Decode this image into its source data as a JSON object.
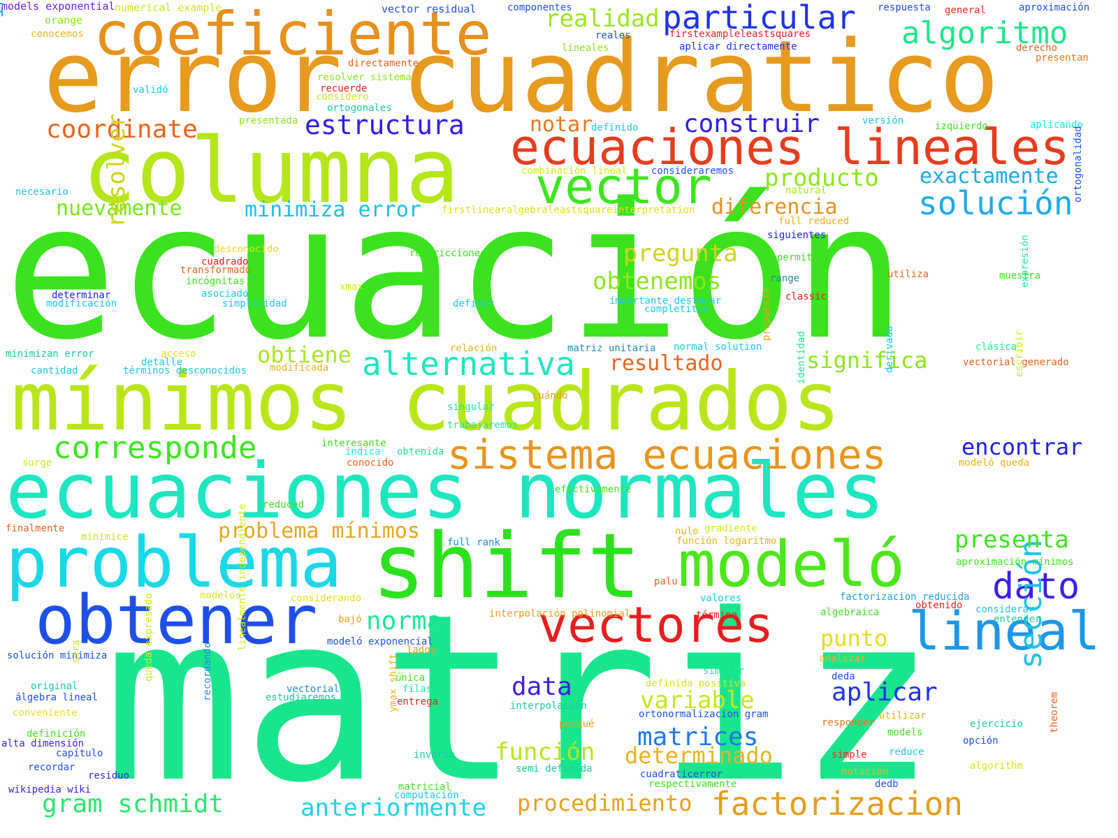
{
  "words": [
    {
      "text": "ecuación",
      "color": "#3ae31e"
    },
    {
      "text": "matriz",
      "color": "#19e68c"
    },
    {
      "text": "error cuadratico",
      "color": "#e69a1e"
    },
    {
      "text": "mínimos cuadrados",
      "color": "#b9e61a"
    },
    {
      "text": "ecuaciones normales",
      "color": "#1ee6c1"
    },
    {
      "text": "columna",
      "color": "#b4e61b"
    },
    {
      "text": "shift",
      "color": "#2de11e"
    },
    {
      "text": "coeficiente",
      "color": "#e6901e"
    },
    {
      "text": "problema",
      "color": "#1ad8e6"
    },
    {
      "text": "obtener",
      "color": "#1e50e6"
    },
    {
      "text": "modeló",
      "color": "#4de61a"
    },
    {
      "text": "ecuaciones lineales",
      "color": "#e63c1e"
    },
    {
      "text": "vector",
      "color": "#3ce61e"
    },
    {
      "text": "vectores",
      "color": "#e61e1e"
    },
    {
      "text": "sistema ecuaciones",
      "color": "#e6951e"
    },
    {
      "text": "lineal",
      "color": "#1e96e6"
    },
    {
      "text": "particular",
      "color": "#1e32e6"
    },
    {
      "text": "algoritmo",
      "color": "#1ee68a"
    },
    {
      "text": "alternativa",
      "color": "#1ee6c0"
    },
    {
      "text": "solución",
      "color": "#1eaae6"
    },
    {
      "text": "corresponde",
      "color": "#3ce61e"
    },
    {
      "text": "factorizacion",
      "color": "#e69c1e"
    },
    {
      "text": "dato",
      "color": "#3c1ee6"
    },
    {
      "text": "sección",
      "color": "#1ec2e6"
    },
    {
      "text": "estructura",
      "color": "#2d1ee6"
    },
    {
      "text": "construir",
      "color": "#2d1ee6"
    },
    {
      "text": "realidad",
      "color": "#9be61e"
    },
    {
      "text": "producto",
      "color": "#8ce61e"
    },
    {
      "text": "exactamente",
      "color": "#1ea8e6"
    },
    {
      "text": "coordinate",
      "color": "#e6641e"
    },
    {
      "text": "notar",
      "color": "#e6781e"
    },
    {
      "text": "nuevamente",
      "color": "#78e61e"
    },
    {
      "text": "minimiza error",
      "color": "#1ec0e6"
    },
    {
      "text": "diferencia",
      "color": "#e6901e"
    },
    {
      "text": "pregunta",
      "color": "#d2d21e"
    },
    {
      "text": "obtenemos",
      "color": "#8ce61e"
    },
    {
      "text": "obtiene",
      "color": "#a8e61e"
    },
    {
      "text": "resultado",
      "color": "#e6641e"
    },
    {
      "text": "significa",
      "color": "#8ce61e"
    },
    {
      "text": "encontrar",
      "color": "#1e1ee6"
    },
    {
      "text": "problema mínimos",
      "color": "#e6a61e"
    },
    {
      "text": "presenta",
      "color": "#3ce61e"
    },
    {
      "text": "norma",
      "color": "#1ee696"
    },
    {
      "text": "punto",
      "color": "#e6dc1e"
    },
    {
      "text": "data",
      "color": "#3c1ee6"
    },
    {
      "text": "aplicar",
      "color": "#1e32e6"
    },
    {
      "text": "variable",
      "color": "#c8e61e"
    },
    {
      "text": "matrices",
      "color": "#1e78e6"
    },
    {
      "text": "función",
      "color": "#b4e61e"
    },
    {
      "text": "determinado",
      "color": "#e6b41e"
    },
    {
      "text": "gram schmidt",
      "color": "#2de66e"
    },
    {
      "text": "anteriormente",
      "color": "#1ed2e6"
    },
    {
      "text": "procedimiento",
      "color": "#e6a01e"
    },
    {
      "text": "importante",
      "color": "#1eb4e6"
    },
    {
      "text": "resolver",
      "color": "#d2d21e"
    },
    {
      "text": "models exponential",
      "color": "#6e1ee6"
    },
    {
      "text": "numerical example",
      "color": "#d2e61e"
    },
    {
      "text": "orange",
      "color": "#8ce61e"
    },
    {
      "text": "conocemos",
      "color": "#e6b41e"
    },
    {
      "text": "vector residual",
      "color": "#1e50e6"
    },
    {
      "text": "componentes",
      "color": "#1e50e6"
    },
    {
      "text": "respuesta",
      "color": "#1e50e6"
    },
    {
      "text": "general",
      "color": "#e6281e"
    },
    {
      "text": "aproximación",
      "color": "#1e50e6"
    },
    {
      "text": "reales",
      "color": "#1e50e6"
    },
    {
      "text": "firstexampleleastsquares",
      "color": "#e61e28"
    },
    {
      "text": "lineales",
      "color": "#8ce61e"
    },
    {
      "text": "aplicar directamente",
      "color": "#1e32e6"
    },
    {
      "text": "derecho",
      "color": "#e6641e"
    },
    {
      "text": "presentan",
      "color": "#e6781e"
    },
    {
      "text": "directamente",
      "color": "#e6641e"
    },
    {
      "text": "resolver sistema",
      "color": "#8ce61e"
    },
    {
      "text": "recuerde",
      "color": "#e61e1e"
    },
    {
      "text": "considero",
      "color": "#d2e61e"
    },
    {
      "text": "ortogonales",
      "color": "#1ec8a0"
    },
    {
      "text": "validó",
      "color": "#1ec8e6"
    },
    {
      "text": "presentada",
      "color": "#8ce61e"
    },
    {
      "text": "definido",
      "color": "#1ec8e6"
    },
    {
      "text": "versión",
      "color": "#1ec8e6"
    },
    {
      "text": "izquierdo",
      "color": "#3ce61e"
    },
    {
      "text": "aplicando",
      "color": "#1ee6e6"
    },
    {
      "text": "combinación lineal",
      "color": "#d2e61e"
    },
    {
      "text": "consideraremos",
      "color": "#1e50e6"
    },
    {
      "text": "necesario",
      "color": "#1ec8e6"
    },
    {
      "text": "natural",
      "color": "#a8e61e"
    },
    {
      "text": "firstlinearalgebraleastsquareinterpretation",
      "color": "#e6dc1e"
    },
    {
      "text": "full reduced",
      "color": "#e6b41e"
    },
    {
      "text": "siguientes",
      "color": "#1e1ee6"
    },
    {
      "text": "ortogonalidad",
      "color": "#1e50e6"
    },
    {
      "text": "desconocido",
      "color": "#e6dc1e"
    },
    {
      "text": "restricciones",
      "color": "#3ce61e"
    },
    {
      "text": "cuadrado",
      "color": "#e61e1e"
    },
    {
      "text": "transformado",
      "color": "#e6641e"
    },
    {
      "text": "permite",
      "color": "#3ce61e"
    },
    {
      "text": "incógnitas",
      "color": "#3ce61e"
    },
    {
      "text": "utiliza",
      "color": "#e6641e"
    },
    {
      "text": "range",
      "color": "#1e8c8c"
    },
    {
      "text": "muestra",
      "color": "#3ce61e"
    },
    {
      "text": "xmax",
      "color": "#d2e61e"
    },
    {
      "text": "asociado",
      "color": "#1ec8e6"
    },
    {
      "text": "determinar",
      "color": "#1e1ee6"
    },
    {
      "text": "modificación",
      "color": "#1ec8e6"
    },
    {
      "text": "simplicidad",
      "color": "#1ec8e6"
    },
    {
      "text": "definir",
      "color": "#1ec8e6"
    },
    {
      "text": "importante destacar",
      "color": "#1ec8e6"
    },
    {
      "text": "completitud",
      "color": "#1ec8e6"
    },
    {
      "text": "classic",
      "color": "#e61e1e"
    },
    {
      "text": "expresión",
      "color": "#1ee6a0"
    },
    {
      "text": "minimizan error",
      "color": "#1ec8a0"
    },
    {
      "text": "acceso",
      "color": "#e6dc1e"
    },
    {
      "text": "relación",
      "color": "#e6b41e"
    },
    {
      "text": "matriz unitaria",
      "color": "#1e8cb4"
    },
    {
      "text": "normal solution",
      "color": "#1ec8e6"
    },
    {
      "text": "propuesto",
      "color": "#e6a01e"
    },
    {
      "text": "clásica",
      "color": "#1ee696"
    },
    {
      "text": "vectorial generado",
      "color": "#e6641e"
    },
    {
      "text": "detalle",
      "color": "#1ec8e6"
    },
    {
      "text": "cantidad",
      "color": "#1ec8e6"
    },
    {
      "text": "términos desconocidos",
      "color": "#1ec8e6"
    },
    {
      "text": "modificada",
      "color": "#e6b41e"
    },
    {
      "text": "derivada",
      "color": "#1ec8e6"
    },
    {
      "text": "identidad",
      "color": "#1ee696"
    },
    {
      "text": "cuándo",
      "color": "#e6a01e"
    },
    {
      "text": "singular",
      "color": "#1ee6a0"
    },
    {
      "text": "trabajaremos",
      "color": "#1ee6a0"
    },
    {
      "text": "escribir",
      "color": "#d2e61e"
    },
    {
      "text": "interesante",
      "color": "#3ce61e"
    },
    {
      "text": "indica",
      "color": "#1ee6e6"
    },
    {
      "text": "obtenida",
      "color": "#1ee696"
    },
    {
      "text": "conocido",
      "color": "#e6641e"
    },
    {
      "text": "surge",
      "color": "#d2e61e"
    },
    {
      "text": "modeló queda",
      "color": "#e6b41e"
    },
    {
      "text": "reduced",
      "color": "#3ce61e"
    },
    {
      "text": "efectivamente",
      "color": "#3ce61e"
    },
    {
      "text": "finalmente",
      "color": "#e6641e"
    },
    {
      "text": "minimice",
      "color": "#d2e61e"
    },
    {
      "text": "full rank",
      "color": "#1e8ce6"
    },
    {
      "text": "nulo",
      "color": "#e6b41e"
    },
    {
      "text": "gradiente",
      "color": "#d2e61e"
    },
    {
      "text": "función logaritmo",
      "color": "#e6b41e"
    },
    {
      "text": "aproximación mínimos",
      "color": "#3ce61e"
    },
    {
      "text": "palu",
      "color": "#e6641e"
    },
    {
      "text": "modelos",
      "color": "#d2e61e"
    },
    {
      "text": "considerando",
      "color": "#e6dc1e"
    },
    {
      "text": "valores",
      "color": "#1ec8e6"
    },
    {
      "text": "factorizacion reducida",
      "color": "#1ea0e6"
    },
    {
      "text": "interpolación polinomial",
      "color": "#e6a01e"
    },
    {
      "text": "término",
      "color": "#e61e1e"
    },
    {
      "text": "obtenido",
      "color": "#e6281e"
    },
    {
      "text": "considerar",
      "color": "#1ec8e6"
    },
    {
      "text": "entender",
      "color": "#1ec8a0"
    },
    {
      "text": "algebraica",
      "color": "#3ce61e"
    },
    {
      "text": "bajó",
      "color": "#e6a01e"
    },
    {
      "text": "modeló exponencial",
      "color": "#1e50e6"
    },
    {
      "text": "lados",
      "color": "#e6a01e"
    },
    {
      "text": "solución minimiza",
      "color": "#1e50e6"
    },
    {
      "text": "analizar",
      "color": "#e6b41e"
    },
    {
      "text": "similar",
      "color": "#1ee6a0"
    },
    {
      "text": "sera",
      "color": "#d2e61e"
    },
    {
      "text": "linealmente independiente",
      "color": "#d2e61e"
    },
    {
      "text": "queda expresado",
      "color": "#d2e61e"
    },
    {
      "text": "recordando",
      "color": "#1e8ce6"
    },
    {
      "text": "línea",
      "color": "#1ee6a0"
    },
    {
      "text": "única",
      "color": "#3ce61e"
    },
    {
      "text": "deda",
      "color": "#1e50e6"
    },
    {
      "text": "filas",
      "color": "#1ee6a0"
    },
    {
      "text": "definida positiva",
      "color": "#d2e61e"
    },
    {
      "text": "original",
      "color": "#1ec8a0"
    },
    {
      "text": "vectorial",
      "color": "#1e8ce6"
    },
    {
      "text": "estudiaremos",
      "color": "#1ec8a0"
    },
    {
      "text": "álgebra lineal",
      "color": "#1e50e6"
    },
    {
      "text": "entrega",
      "color": "#e6281e"
    },
    {
      "text": "interpolación",
      "color": "#1ec8a0"
    },
    {
      "text": "conveniente",
      "color": "#e6dc1e"
    },
    {
      "text": "ortonormalizacion gram",
      "color": "#1e50e6"
    },
    {
      "text": "utilizar",
      "color": "#e6b41e"
    },
    {
      "text": "responder",
      "color": "#e6781e"
    },
    {
      "text": "ejercicio",
      "color": "#1ec8a0"
    },
    {
      "text": "porqué",
      "color": "#e6a01e"
    },
    {
      "text": "models",
      "color": "#3ce61e"
    },
    {
      "text": "definición",
      "color": "#3ce61e"
    },
    {
      "text": "alta dimensión",
      "color": "#3c1ee6"
    },
    {
      "text": "capítulo",
      "color": "#1e50e6"
    },
    {
      "text": "ymax shift",
      "color": "#e6b41e"
    },
    {
      "text": "opción",
      "color": "#1e50e6"
    },
    {
      "text": "simple",
      "color": "#e6281e"
    },
    {
      "text": "reduce",
      "color": "#1ec8e6"
    },
    {
      "text": "theorem",
      "color": "#e6641e"
    },
    {
      "text": "inversa",
      "color": "#1ec8a0"
    },
    {
      "text": "recordar",
      "color": "#1e50e6"
    },
    {
      "text": "residuo",
      "color": "#3c1ee6"
    },
    {
      "text": "semi definida",
      "color": "#1ec8a0"
    },
    {
      "text": "algorithm",
      "color": "#d2e61e"
    },
    {
      "text": "notación",
      "color": "#e6b41e"
    },
    {
      "text": "wikipedia wiki",
      "color": "#3c1ee6"
    },
    {
      "text": "matricial",
      "color": "#3ce61e"
    },
    {
      "text": "cuadraticerror",
      "color": "#1e50e6"
    },
    {
      "text": "computación",
      "color": "#1ec8e6"
    },
    {
      "text": "respectivamente",
      "color": "#3ce61e"
    },
    {
      "text": "dedb",
      "color": "#1e50e6"
    }
  ]
}
